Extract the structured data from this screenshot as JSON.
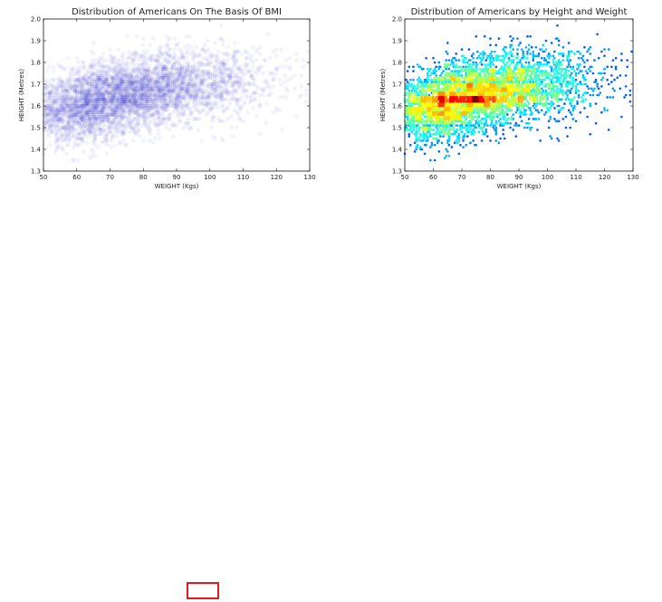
{
  "chart_data": [
    {
      "type": "scatter",
      "title": "Distribution of Americans On The Basis Of BMI",
      "xlabel": "WEIGHT (Kgs)",
      "ylabel": "HEIGHT (Metres)",
      "xlim": [
        50,
        130
      ],
      "ylim": [
        1.3,
        2.0
      ],
      "xticks": [
        "50",
        "60",
        "70",
        "80",
        "90",
        "100",
        "110",
        "120",
        "130"
      ],
      "yticks": [
        "1.3",
        "1.4",
        "1.5",
        "1.6",
        "1.7",
        "1.8",
        "1.9",
        "2.0"
      ],
      "point_color": "#3333cc",
      "point_opacity": 0.06,
      "grid": false,
      "legend": "none",
      "distribution": {
        "x_mode": 68,
        "x_spread": 14,
        "y_mean_at": [
          [
            50,
            1.57
          ],
          [
            70,
            1.63
          ],
          [
            90,
            1.69
          ],
          [
            110,
            1.72
          ],
          [
            130,
            1.74
          ]
        ],
        "y_spread": 0.085,
        "approx_points": 4500
      }
    },
    {
      "type": "scatter",
      "title": "Distribution of Americans by Height and Weight",
      "xlabel": "WEIGHT (Kgs)",
      "ylabel": "HEIGHT (Metres)",
      "xlim": [
        50,
        130
      ],
      "ylim": [
        1.3,
        2.0
      ],
      "xticks": [
        "50",
        "60",
        "70",
        "80",
        "90",
        "100",
        "110",
        "120",
        "130"
      ],
      "yticks": [
        "1.3",
        "1.4",
        "1.5",
        "1.6",
        "1.7",
        "1.8",
        "1.9",
        "2.0"
      ],
      "colormap": "jet",
      "color_encoding": "point density",
      "grid": false,
      "legend": "none",
      "distribution": {
        "x_mode": 68,
        "x_spread": 14,
        "y_mean_at": [
          [
            50,
            1.57
          ],
          [
            70,
            1.63
          ],
          [
            90,
            1.69
          ],
          [
            110,
            1.72
          ],
          [
            130,
            1.74
          ]
        ],
        "y_spread": 0.085,
        "approx_points": 4500
      }
    }
  ],
  "annotation": {
    "color": "#e0191e"
  }
}
